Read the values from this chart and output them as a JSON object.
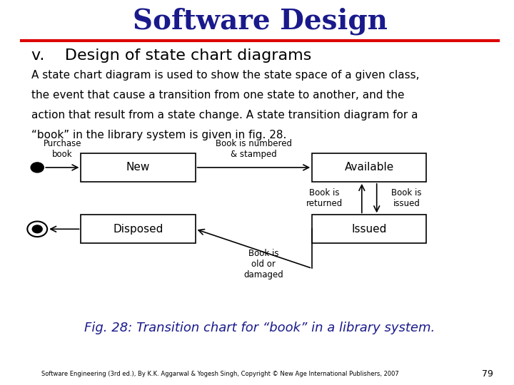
{
  "title": "Software Design",
  "title_color": "#1a1a8c",
  "title_fontsize": 28,
  "subtitle": "v.    Design of state chart diagrams",
  "subtitle_fontsize": 16,
  "subtitle_color": "#000000",
  "body_lines": [
    "A state chart diagram is used to show the state space of a given class,",
    "the event that cause a transition from one state to another, and the",
    "action that result from a state change. A state transition diagram for a",
    "“book” in the library system is given in fig. 28."
  ],
  "body_fontsize": 11,
  "fig_caption": "Fig. 28: Transition chart for “book” in a library system.",
  "fig_caption_color": "#1a1a8c",
  "fig_caption_fontsize": 13,
  "footer_text": "Software Engineering (3rd ed.), By K.K. Aggarwal & Yogesh Singh, Copyright © New Age International Publishers, 2007",
  "footer_fontsize": 6,
  "page_number": "79",
  "red_line_color": "#dd0000",
  "background_color": "#ffffff"
}
